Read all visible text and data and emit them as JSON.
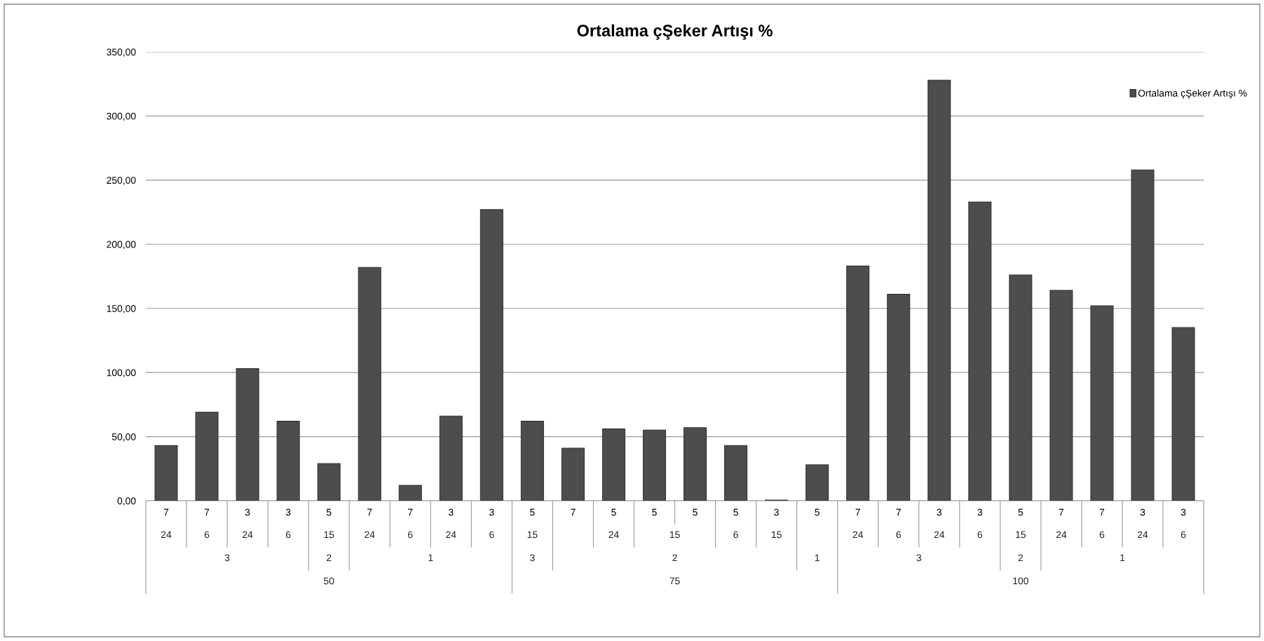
{
  "chart_data": {
    "type": "bar",
    "title": "Ortalama çŞeker Artışı %",
    "categories": [
      "7",
      "7",
      "3",
      "3",
      "5",
      "7",
      "7",
      "3",
      "3",
      "5",
      "7",
      "5",
      "5",
      "5",
      "5",
      "3",
      "5",
      "7",
      "7",
      "3",
      "3",
      "5",
      "7",
      "7",
      "3",
      "3"
    ],
    "series": [
      {
        "name": "Ortalama çŞeker Artışı %",
        "color": "#4d4d4d",
        "values": [
          43,
          69,
          103,
          62,
          29,
          182,
          12,
          66,
          227,
          62,
          41,
          56,
          55,
          57,
          43,
          0.5,
          28,
          183,
          161,
          328,
          233,
          176,
          164,
          152,
          258,
          135
        ]
      }
    ],
    "annotations": [
      "24",
      "6",
      "24",
      "6",
      "15",
      "24",
      "6",
      "24",
      "6",
      "15",
      "24",
      "15",
      "6",
      "15",
      "24",
      "6",
      "24",
      "6",
      "15",
      "24",
      "6",
      "24",
      "6",
      "3",
      "2",
      "1",
      "3",
      "2",
      "1",
      "3",
      "2",
      "1",
      "50",
      "75",
      "100"
    ],
    "ylim": [
      0,
      350
    ],
    "yticks": [
      {
        "value": 0,
        "label": "0,00"
      },
      {
        "value": 50,
        "label": "50,00"
      },
      {
        "value": 100,
        "label": "100,00"
      },
      {
        "value": 150,
        "label": "150,00"
      },
      {
        "value": 200,
        "label": "200,00"
      },
      {
        "value": 250,
        "label": "250,00"
      },
      {
        "value": 300,
        "label": "300,00"
      },
      {
        "value": 350,
        "label": "350,00"
      }
    ],
    "grid": "y",
    "legend": "top right"
  }
}
